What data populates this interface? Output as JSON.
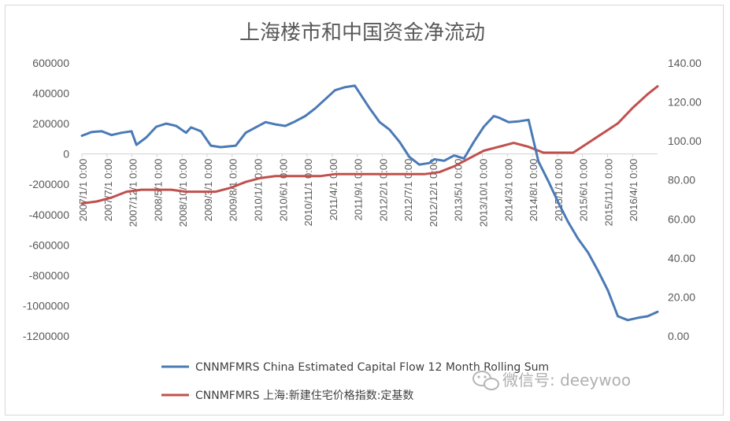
{
  "chart_data": {
    "type": "line",
    "title": "上海楼市和中国资金净流动",
    "y_left": {
      "ticks": [
        "600000",
        "400000",
        "200000",
        "0",
        "-200000",
        "-400000",
        "-600000",
        "-800000",
        "-1000000",
        "-1200000"
      ],
      "ylim": [
        -1200000,
        600000
      ]
    },
    "y_right": {
      "ticks": [
        "140.00",
        "120.00",
        "100.00",
        "80.00",
        "60.00",
        "40.00",
        "20.00",
        "0.00"
      ],
      "ylim": [
        0,
        140
      ]
    },
    "x_tick_labels": [
      "2007/1/1 0:00",
      "2007/7/1 0:00",
      "2007/12/1 0:00",
      "2008/5/1 0:00",
      "2008/10/1 0:00",
      "2009/3/1 0:00",
      "2009/8/1 0:00",
      "2010/1/1 0:00",
      "2010/6/1 0:00",
      "2010/11/1 0:00",
      "2011/4/1 0:00",
      "2011/9/1 0:00",
      "2012/2/1 0:00",
      "2012/7/1 0:00",
      "2012/12/1 0:00",
      "2013/5/1 0:00",
      "2013/10/1 0:00",
      "2014/3/1 0:00",
      "2014/8/1 0:00",
      "2015/1/1 0:00",
      "2015/6/1 0:00",
      "2015/11/1 0:00",
      "2016/4/1 0:00"
    ],
    "series": [
      {
        "name": "CNNMFMRS China Estimated Capital Flow 12 Month Rolling Sum",
        "axis": "left",
        "color": "#4a7ab5",
        "x": [
          "2007-01",
          "2007-03",
          "2007-05",
          "2007-07",
          "2007-09",
          "2007-11",
          "2007-12",
          "2008-02",
          "2008-04",
          "2008-06",
          "2008-08",
          "2008-10",
          "2008-11",
          "2009-01",
          "2009-03",
          "2009-05",
          "2009-08",
          "2009-10",
          "2009-12",
          "2010-02",
          "2010-04",
          "2010-06",
          "2010-08",
          "2010-10",
          "2010-12",
          "2011-02",
          "2011-04",
          "2011-06",
          "2011-08",
          "2011-09",
          "2011-11",
          "2012-01",
          "2012-03",
          "2012-05",
          "2012-07",
          "2012-09",
          "2012-11",
          "2012-12",
          "2013-02",
          "2013-04",
          "2013-06",
          "2013-08",
          "2013-10",
          "2013-12",
          "2014-01",
          "2014-03",
          "2014-05",
          "2014-07",
          "2014-09",
          "2014-11",
          "2015-01",
          "2015-03",
          "2015-05",
          "2015-07",
          "2015-09",
          "2015-11",
          "2016-01",
          "2016-03",
          "2016-05",
          "2016-07",
          "2016-09"
        ],
        "values": [
          120000,
          145000,
          150000,
          125000,
          140000,
          150000,
          60000,
          110000,
          180000,
          200000,
          185000,
          140000,
          175000,
          150000,
          55000,
          45000,
          55000,
          140000,
          175000,
          210000,
          195000,
          185000,
          215000,
          250000,
          300000,
          360000,
          420000,
          440000,
          450000,
          400000,
          300000,
          210000,
          160000,
          80000,
          -20000,
          -70000,
          -60000,
          -35000,
          -45000,
          -10000,
          -30000,
          80000,
          180000,
          250000,
          240000,
          210000,
          215000,
          225000,
          -50000,
          -180000,
          -320000,
          -450000,
          -560000,
          -650000,
          -770000,
          -900000,
          -1070000,
          -1095000,
          -1080000,
          -1070000,
          -1040000
        ]
      },
      {
        "name": "CNNMFMRS 上海:新建住宅价格指数:定基数",
        "axis": "right",
        "color": "#c0504d",
        "x": [
          "2007-01",
          "2007-04",
          "2007-07",
          "2007-10",
          "2008-01",
          "2008-04",
          "2008-07",
          "2008-10",
          "2009-01",
          "2009-04",
          "2009-07",
          "2009-10",
          "2010-01",
          "2010-04",
          "2010-07",
          "2010-10",
          "2011-01",
          "2011-04",
          "2011-07",
          "2011-10",
          "2012-01",
          "2012-04",
          "2012-07",
          "2012-10",
          "2013-01",
          "2013-04",
          "2013-07",
          "2013-10",
          "2014-01",
          "2014-04",
          "2014-07",
          "2014-10",
          "2015-01",
          "2015-04",
          "2015-07",
          "2015-10",
          "2016-01",
          "2016-04",
          "2016-07",
          "2016-09"
        ],
        "values": [
          68,
          69,
          71,
          74,
          75,
          75,
          75,
          74,
          74,
          74,
          76,
          79,
          81,
          82,
          82,
          82,
          82,
          83,
          83,
          83,
          83,
          83,
          83,
          83,
          84,
          87,
          91,
          95,
          97,
          99,
          97,
          94,
          94,
          94,
          99,
          104,
          109,
          117,
          124,
          128
        ]
      }
    ],
    "legend_position": "bottom",
    "grid": false
  },
  "watermark": {
    "icon": "wechat-icon",
    "text": "微信号: deeywoo"
  }
}
